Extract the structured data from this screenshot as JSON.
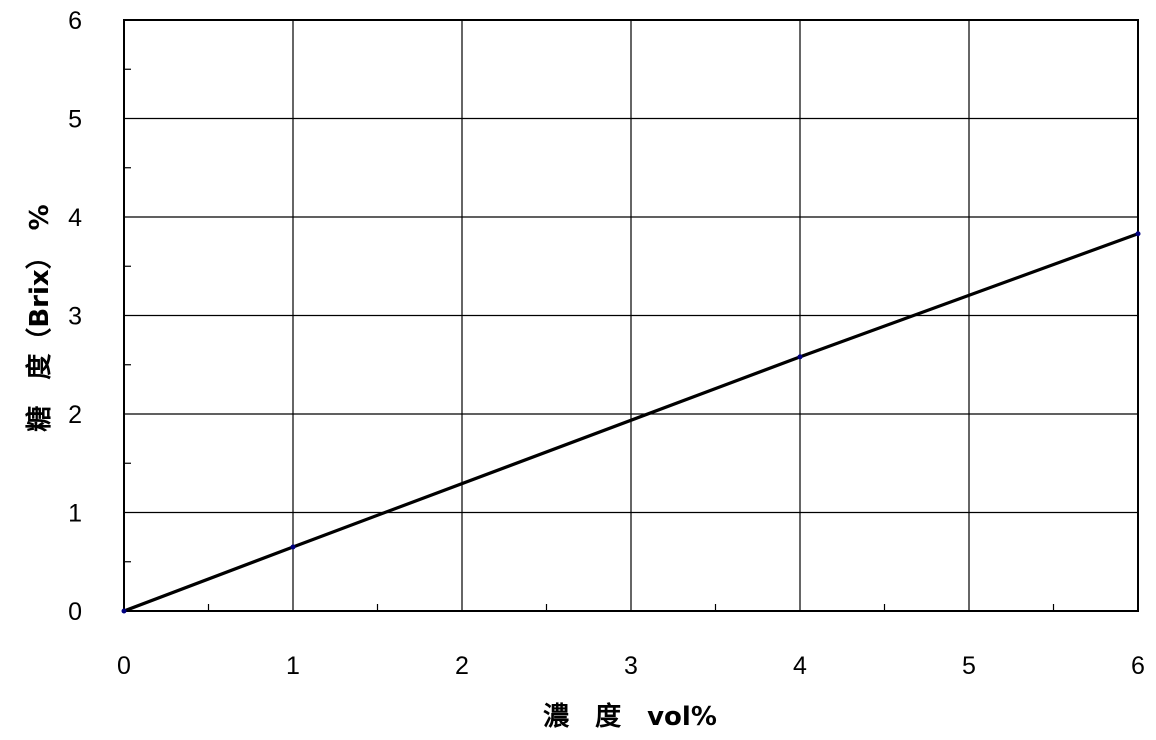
{
  "chart_data": {
    "type": "line",
    "title": "",
    "xlabel": "濃　度　vol%",
    "ylabel": "糖　度（Brix）　%",
    "xlim": [
      0,
      6
    ],
    "ylim": [
      0,
      6
    ],
    "x_ticks": [
      0,
      1,
      2,
      3,
      4,
      5,
      6
    ],
    "y_ticks": [
      0,
      1,
      2,
      3,
      4,
      5,
      6
    ],
    "x_tick_labels": [
      "0",
      "1",
      "2",
      "3",
      "4",
      "5",
      "6"
    ],
    "y_tick_labels": [
      "0",
      "1",
      "2",
      "3",
      "4",
      "5",
      "6"
    ],
    "grid": true,
    "legend": "none",
    "series": [
      {
        "x": [
          0,
          1,
          4,
          6
        ],
        "y": [
          0,
          0.65,
          2.58,
          3.83
        ],
        "line_color": "#000000",
        "marker_color": "#000080"
      }
    ]
  }
}
